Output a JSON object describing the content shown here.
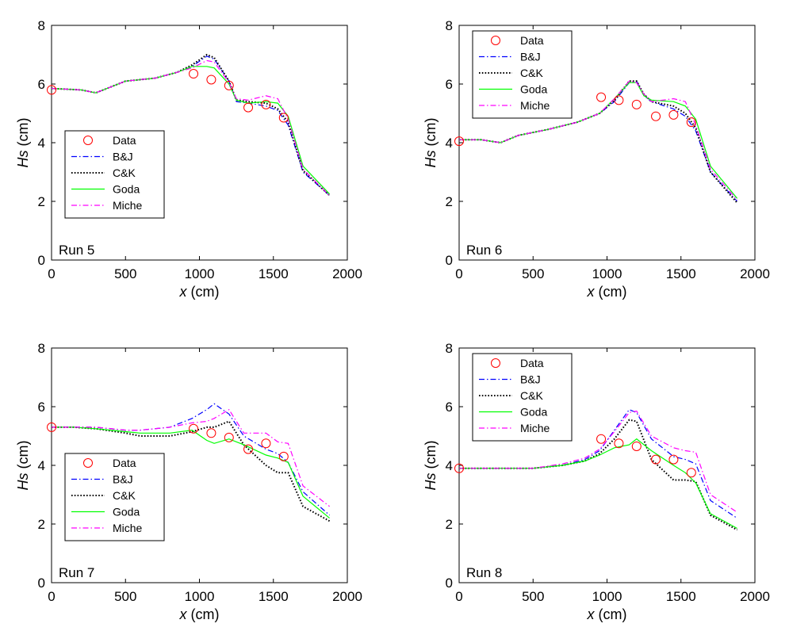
{
  "chart_data": [
    {
      "type": "line",
      "annotation": "Run 5",
      "xlabel_var": "x",
      "xlabel_unit": " (cm)",
      "ylabel_var": "Hs",
      "ylabel_unit": " (cm)",
      "xlim": [
        0,
        2000
      ],
      "ylim": [
        0,
        8
      ],
      "xticks": [
        0,
        500,
        1000,
        1500,
        2000
      ],
      "yticks": [
        0,
        2,
        4,
        6,
        8
      ],
      "legend_position": "lower-left",
      "data_points": {
        "name": "Data",
        "x": [
          0,
          960,
          1080,
          1200,
          1330,
          1450,
          1570
        ],
        "y": [
          5.8,
          6.35,
          6.15,
          5.95,
          5.2,
          5.3,
          4.85
        ]
      },
      "series": [
        {
          "name": "B&J",
          "x": [
            0,
            200,
            300,
            500,
            700,
            850,
            950,
            1050,
            1100,
            1200,
            1250,
            1330,
            1450,
            1530,
            1600,
            1700,
            1880
          ],
          "y": [
            5.85,
            5.8,
            5.7,
            6.1,
            6.2,
            6.4,
            6.6,
            6.95,
            6.85,
            6.1,
            5.4,
            5.35,
            5.25,
            5.1,
            4.6,
            3.0,
            2.2
          ]
        },
        {
          "name": "C&K",
          "x": [
            0,
            200,
            300,
            500,
            700,
            850,
            950,
            1050,
            1100,
            1200,
            1250,
            1330,
            1450,
            1530,
            1600,
            1700,
            1880
          ],
          "y": [
            5.85,
            5.8,
            5.7,
            6.1,
            6.2,
            6.4,
            6.65,
            7.0,
            6.9,
            6.1,
            5.45,
            5.4,
            5.35,
            5.15,
            4.7,
            3.05,
            2.2
          ]
        },
        {
          "name": "Goda",
          "x": [
            0,
            200,
            300,
            500,
            700,
            850,
            950,
            1050,
            1100,
            1200,
            1250,
            1330,
            1450,
            1530,
            1600,
            1700,
            1880
          ],
          "y": [
            5.85,
            5.8,
            5.7,
            6.1,
            6.2,
            6.4,
            6.6,
            6.6,
            6.55,
            6.0,
            5.45,
            5.35,
            5.4,
            5.35,
            4.9,
            3.2,
            2.25
          ]
        },
        {
          "name": "Miche",
          "x": [
            0,
            200,
            300,
            500,
            700,
            850,
            950,
            1050,
            1100,
            1200,
            1250,
            1330,
            1450,
            1530,
            1600,
            1700,
            1880
          ],
          "y": [
            5.85,
            5.8,
            5.7,
            6.1,
            6.2,
            6.4,
            6.55,
            6.8,
            6.75,
            6.05,
            5.5,
            5.45,
            5.6,
            5.5,
            4.8,
            3.1,
            2.2
          ]
        }
      ]
    },
    {
      "type": "line",
      "annotation": "Run 6",
      "xlabel_var": "x",
      "xlabel_unit": " (cm)",
      "ylabel_var": "Hs",
      "ylabel_unit": " (cm)",
      "xlim": [
        0,
        2000
      ],
      "ylim": [
        0,
        8
      ],
      "xticks": [
        0,
        500,
        1000,
        1500,
        2000
      ],
      "yticks": [
        0,
        2,
        4,
        6,
        8
      ],
      "legend_position": "top-left",
      "data_points": {
        "name": "Data",
        "x": [
          0,
          960,
          1080,
          1200,
          1330,
          1450,
          1570
        ],
        "y": [
          4.05,
          5.55,
          5.45,
          5.3,
          4.9,
          4.95,
          4.7
        ]
      },
      "series": [
        {
          "name": "B&J",
          "x": [
            0,
            150,
            280,
            400,
            600,
            800,
            950,
            1050,
            1150,
            1200,
            1250,
            1300,
            1450,
            1530,
            1600,
            1700,
            1880
          ],
          "y": [
            4.1,
            4.1,
            4.0,
            4.25,
            4.45,
            4.7,
            5.0,
            5.4,
            6.05,
            6.1,
            5.6,
            5.4,
            5.15,
            4.9,
            4.4,
            3.0,
            2.0
          ]
        },
        {
          "name": "C&K",
          "x": [
            0,
            150,
            280,
            400,
            600,
            800,
            950,
            1050,
            1150,
            1200,
            1250,
            1300,
            1450,
            1530,
            1600,
            1700,
            1880
          ],
          "y": [
            4.1,
            4.1,
            4.0,
            4.25,
            4.45,
            4.7,
            5.0,
            5.45,
            6.1,
            6.1,
            5.65,
            5.4,
            5.25,
            5.0,
            4.5,
            3.0,
            1.95
          ]
        },
        {
          "name": "Goda",
          "x": [
            0,
            150,
            280,
            400,
            600,
            800,
            950,
            1050,
            1150,
            1200,
            1250,
            1300,
            1450,
            1530,
            1600,
            1700,
            1880
          ],
          "y": [
            4.1,
            4.1,
            4.0,
            4.25,
            4.45,
            4.7,
            5.0,
            5.5,
            6.05,
            6.05,
            5.6,
            5.45,
            5.4,
            5.25,
            4.8,
            3.2,
            2.1
          ]
        },
        {
          "name": "Miche",
          "x": [
            0,
            150,
            280,
            400,
            600,
            800,
            950,
            1050,
            1150,
            1200,
            1250,
            1300,
            1450,
            1530,
            1600,
            1700,
            1880
          ],
          "y": [
            4.1,
            4.1,
            4.0,
            4.25,
            4.45,
            4.7,
            5.0,
            5.5,
            6.1,
            6.05,
            5.65,
            5.4,
            5.5,
            5.4,
            4.6,
            3.1,
            2.05
          ]
        }
      ]
    },
    {
      "type": "line",
      "annotation": "Run 7",
      "xlabel_var": "x",
      "xlabel_unit": " (cm)",
      "ylabel_var": "Hs",
      "ylabel_unit": " (cm)",
      "xlim": [
        0,
        2000
      ],
      "ylim": [
        0,
        8
      ],
      "xticks": [
        0,
        500,
        1000,
        1500,
        2000
      ],
      "yticks": [
        0,
        2,
        4,
        6,
        8
      ],
      "legend_position": "lower-left",
      "data_points": {
        "name": "Data",
        "x": [
          0,
          960,
          1080,
          1200,
          1330,
          1450,
          1570
        ],
        "y": [
          5.3,
          5.25,
          5.1,
          4.95,
          4.55,
          4.75,
          4.3
        ]
      },
      "series": [
        {
          "name": "B&J",
          "x": [
            0,
            150,
            300,
            500,
            600,
            800,
            950,
            1050,
            1100,
            1200,
            1300,
            1450,
            1530,
            1600,
            1700,
            1880
          ],
          "y": [
            5.3,
            5.3,
            5.3,
            5.2,
            5.2,
            5.3,
            5.6,
            5.9,
            6.1,
            5.75,
            5.0,
            4.55,
            4.4,
            4.1,
            3.1,
            2.3
          ]
        },
        {
          "name": "C&K",
          "x": [
            0,
            150,
            300,
            500,
            600,
            800,
            950,
            1050,
            1100,
            1200,
            1300,
            1450,
            1530,
            1600,
            1700,
            1880
          ],
          "y": [
            5.3,
            5.3,
            5.25,
            5.1,
            5.0,
            5.0,
            5.15,
            5.3,
            5.3,
            5.5,
            4.7,
            4.0,
            3.75,
            3.75,
            2.6,
            2.1
          ]
        },
        {
          "name": "Goda",
          "x": [
            0,
            150,
            300,
            500,
            600,
            800,
            950,
            1050,
            1100,
            1200,
            1300,
            1450,
            1530,
            1600,
            1700,
            1880
          ],
          "y": [
            5.3,
            5.3,
            5.25,
            5.15,
            5.1,
            5.1,
            5.2,
            4.85,
            4.75,
            4.9,
            4.7,
            4.35,
            4.25,
            4.1,
            2.95,
            2.2
          ]
        },
        {
          "name": "Miche",
          "x": [
            0,
            150,
            300,
            500,
            600,
            800,
            950,
            1050,
            1100,
            1200,
            1300,
            1450,
            1530,
            1600,
            1700,
            1880
          ],
          "y": [
            5.3,
            5.3,
            5.3,
            5.2,
            5.2,
            5.3,
            5.45,
            5.5,
            5.6,
            5.9,
            5.1,
            5.1,
            4.8,
            4.75,
            3.3,
            2.6
          ]
        }
      ]
    },
    {
      "type": "line",
      "annotation": "Run 8",
      "xlabel_var": "x",
      "xlabel_unit": " (cm)",
      "ylabel_var": "Hs",
      "ylabel_unit": " (cm)",
      "xlim": [
        0,
        2000
      ],
      "ylim": [
        0,
        8
      ],
      "xticks": [
        0,
        500,
        1000,
        1500,
        2000
      ],
      "yticks": [
        0,
        2,
        4,
        6,
        8
      ],
      "legend_position": "top-left",
      "data_points": {
        "name": "Data",
        "x": [
          0,
          960,
          1080,
          1200,
          1330,
          1450,
          1570
        ],
        "y": [
          3.9,
          4.9,
          4.75,
          4.65,
          4.2,
          4.2,
          3.75
        ]
      },
      "series": [
        {
          "name": "B&J",
          "x": [
            0,
            300,
            500,
            700,
            850,
            950,
            1050,
            1150,
            1200,
            1300,
            1450,
            1530,
            1600,
            1700,
            1880
          ],
          "y": [
            3.9,
            3.9,
            3.9,
            4.0,
            4.2,
            4.5,
            5.2,
            5.9,
            5.8,
            4.9,
            4.3,
            4.2,
            4.05,
            2.8,
            2.2
          ]
        },
        {
          "name": "C&K",
          "x": [
            0,
            300,
            500,
            700,
            850,
            950,
            1050,
            1150,
            1200,
            1300,
            1450,
            1530,
            1600,
            1700,
            1880
          ],
          "y": [
            3.9,
            3.9,
            3.9,
            4.0,
            4.15,
            4.4,
            4.9,
            5.55,
            5.5,
            4.2,
            3.5,
            3.5,
            3.45,
            2.3,
            1.8
          ]
        },
        {
          "name": "Goda",
          "x": [
            0,
            300,
            500,
            700,
            850,
            950,
            1050,
            1150,
            1200,
            1300,
            1450,
            1530,
            1600,
            1700,
            1880
          ],
          "y": [
            3.9,
            3.9,
            3.9,
            4.0,
            4.15,
            4.35,
            4.6,
            4.7,
            4.9,
            4.5,
            4.0,
            3.75,
            3.4,
            2.35,
            1.85
          ]
        },
        {
          "name": "Miche",
          "x": [
            0,
            300,
            500,
            700,
            850,
            950,
            1050,
            1150,
            1200,
            1300,
            1450,
            1530,
            1600,
            1700,
            1880
          ],
          "y": [
            3.9,
            3.9,
            3.9,
            4.05,
            4.25,
            4.55,
            5.15,
            5.8,
            5.85,
            5.0,
            4.6,
            4.5,
            4.45,
            3.0,
            2.4
          ]
        }
      ]
    }
  ],
  "styles": {
    "Data": {
      "color": "#ff0000"
    },
    "B&J": {
      "color": "#0000ff"
    },
    "C&K": {
      "color": "#000000"
    },
    "Goda": {
      "color": "#00ff00"
    },
    "Miche": {
      "color": "#ff00ff"
    }
  }
}
